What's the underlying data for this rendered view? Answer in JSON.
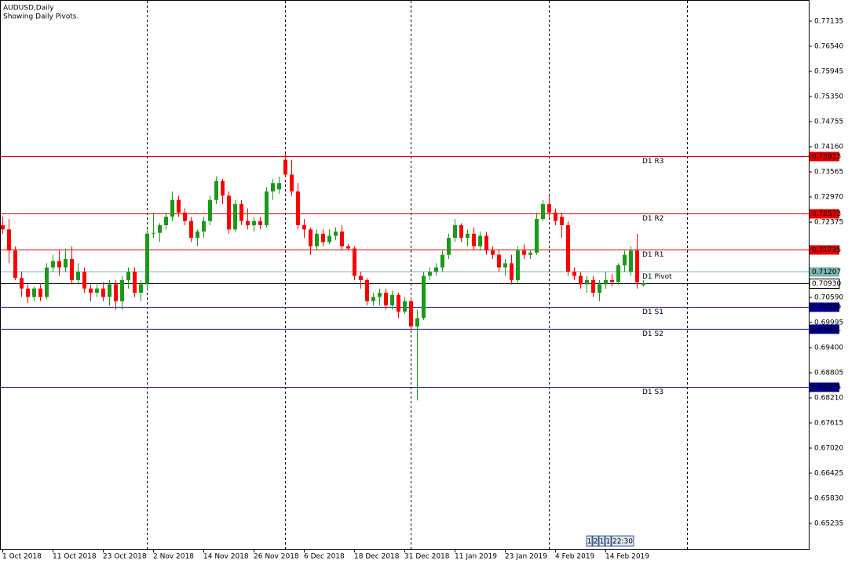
{
  "chart_data": {
    "type": "candlestick",
    "title": "AUDUSD,Daily",
    "subtitle": "Showing Daily Pivots.",
    "categories": [
      "1 Oct 2018",
      null,
      null,
      null,
      null,
      null,
      null,
      null,
      "11 Oct 2018",
      null,
      null,
      null,
      null,
      null,
      null,
      null,
      "23 Oct 2018",
      null,
      null,
      null,
      null,
      null,
      null,
      null,
      "2 Nov 2018",
      null,
      null,
      null,
      null,
      null,
      null,
      null,
      "14 Nov 2018",
      null,
      null,
      null,
      null,
      null,
      null,
      null,
      "26 Nov 2018",
      null,
      null,
      null,
      null,
      null,
      null,
      null,
      "6 Dec 2018",
      null,
      null,
      null,
      null,
      null,
      null,
      null,
      "18 Dec 2018",
      null,
      null,
      null,
      null,
      null,
      null,
      null,
      "31 Dec 2018",
      null,
      null,
      null,
      null,
      null,
      null,
      null,
      "11 Jan 2019",
      null,
      null,
      null,
      null,
      null,
      null,
      null,
      "23 Jan 2019",
      null,
      null,
      null,
      null,
      null,
      null,
      null,
      "4 Feb 2019",
      null,
      null,
      null,
      null,
      null,
      null,
      null,
      "14 Feb 2019",
      null,
      null,
      null,
      null,
      null,
      null
    ],
    "open": [
      0.723,
      0.722,
      0.717,
      0.7105,
      0.708,
      0.706,
      0.708,
      0.706,
      0.713,
      0.7145,
      0.713,
      0.715,
      0.71,
      0.712,
      0.708,
      0.707,
      0.708,
      0.706,
      0.709,
      0.705,
      0.71,
      0.712,
      0.707,
      0.709,
      0.721,
      0.7212,
      0.723,
      0.725,
      0.729,
      0.726,
      0.724,
      0.72,
      0.7215,
      0.724,
      0.729,
      0.7335,
      0.73,
      0.722,
      0.728,
      0.724,
      0.723,
      0.724,
      0.723,
      0.731,
      0.7315,
      0.7385,
      0.735,
      0.731,
      0.723,
      0.722,
      0.718,
      0.721,
      0.719,
      0.7205,
      0.7215,
      0.718,
      0.7175,
      0.711,
      0.71,
      0.705,
      0.706,
      0.707,
      0.704,
      0.7065,
      0.7025,
      0.705,
      0.699,
      0.701,
      0.711,
      0.712,
      0.713,
      0.716,
      0.72,
      0.723,
      0.72,
      0.721,
      0.718,
      0.7205,
      0.717,
      0.716,
      0.713,
      0.714,
      0.71,
      0.717,
      0.716,
      0.7165,
      0.7245,
      0.728,
      0.726,
      0.725,
      0.723,
      0.712,
      0.711,
      0.709,
      0.71,
      0.707,
      0.709,
      0.71,
      0.7095,
      0.7135,
      0.712,
      0.717,
      0.7088
    ],
    "high": [
      0.725,
      0.7245,
      0.718,
      0.712,
      0.709,
      0.7085,
      0.709,
      0.714,
      0.716,
      0.717,
      0.7175,
      0.718,
      0.714,
      0.713,
      0.709,
      0.709,
      0.7095,
      0.71,
      0.71,
      0.711,
      0.713,
      0.713,
      0.71,
      0.722,
      0.726,
      0.7235,
      0.726,
      0.731,
      0.73,
      0.727,
      0.725,
      0.722,
      0.725,
      0.73,
      0.7345,
      0.734,
      0.731,
      0.729,
      0.729,
      0.727,
      0.725,
      0.725,
      0.732,
      0.734,
      0.7345,
      0.74,
      0.7385,
      0.733,
      0.7245,
      0.7225,
      0.722,
      0.722,
      0.722,
      0.7225,
      0.723,
      0.7185,
      0.718,
      0.712,
      0.7105,
      0.707,
      0.708,
      0.708,
      0.7075,
      0.707,
      0.706,
      0.706,
      0.703,
      0.712,
      0.713,
      0.714,
      0.717,
      0.721,
      0.7245,
      0.7235,
      0.722,
      0.7225,
      0.7215,
      0.7215,
      0.718,
      0.717,
      0.715,
      0.716,
      0.718,
      0.7185,
      0.717,
      0.726,
      0.729,
      0.73,
      0.727,
      0.726,
      0.724,
      0.713,
      0.712,
      0.711,
      0.711,
      0.71,
      0.712,
      0.7115,
      0.714,
      0.717,
      0.718,
      0.721,
      0.71
    ],
    "low": [
      0.721,
      0.714,
      0.71,
      0.706,
      0.7045,
      0.705,
      0.705,
      0.7055,
      0.712,
      0.711,
      0.712,
      0.709,
      0.709,
      0.707,
      0.705,
      0.706,
      0.705,
      0.704,
      0.703,
      0.703,
      0.708,
      0.706,
      0.705,
      0.708,
      0.72,
      0.719,
      0.722,
      0.724,
      0.725,
      0.723,
      0.719,
      0.718,
      0.72,
      0.723,
      0.728,
      0.728,
      0.721,
      0.7215,
      0.723,
      0.722,
      0.7215,
      0.722,
      0.7225,
      0.729,
      0.7305,
      0.7345,
      0.73,
      0.722,
      0.72,
      0.716,
      0.717,
      0.718,
      0.7185,
      0.7195,
      0.717,
      0.717,
      0.71,
      0.708,
      0.704,
      0.704,
      0.704,
      0.703,
      0.703,
      0.701,
      0.702,
      0.698,
      0.6815,
      0.7005,
      0.71,
      0.711,
      0.712,
      0.715,
      0.719,
      0.719,
      0.718,
      0.717,
      0.717,
      0.716,
      0.715,
      0.712,
      0.711,
      0.709,
      0.7095,
      0.715,
      0.715,
      0.716,
      0.724,
      0.725,
      0.723,
      0.72,
      0.711,
      0.71,
      0.708,
      0.707,
      0.706,
      0.705,
      0.708,
      0.7085,
      0.709,
      0.712,
      0.711,
      0.708,
      0.7085
    ],
    "close": [
      0.722,
      0.717,
      0.7105,
      0.708,
      0.706,
      0.708,
      0.706,
      0.713,
      0.7145,
      0.713,
      0.715,
      0.71,
      0.712,
      0.708,
      0.707,
      0.708,
      0.706,
      0.709,
      0.705,
      0.71,
      0.712,
      0.707,
      0.709,
      0.721,
      0.7212,
      0.723,
      0.725,
      0.729,
      0.726,
      0.724,
      0.72,
      0.7215,
      0.724,
      0.729,
      0.7335,
      0.73,
      0.722,
      0.728,
      0.724,
      0.723,
      0.724,
      0.723,
      0.731,
      0.733,
      0.733,
      0.735,
      0.731,
      0.723,
      0.722,
      0.718,
      0.721,
      0.719,
      0.7205,
      0.7215,
      0.718,
      0.7175,
      0.711,
      0.71,
      0.705,
      0.706,
      0.707,
      0.704,
      0.7065,
      0.7025,
      0.705,
      0.699,
      0.701,
      0.711,
      0.712,
      0.713,
      0.716,
      0.72,
      0.723,
      0.72,
      0.721,
      0.718,
      0.7205,
      0.717,
      0.716,
      0.713,
      0.714,
      0.71,
      0.717,
      0.716,
      0.7165,
      0.7245,
      0.728,
      0.726,
      0.724,
      0.723,
      0.712,
      0.711,
      0.709,
      0.71,
      0.707,
      0.709,
      0.71,
      0.7095,
      0.7135,
      0.716,
      0.717,
      0.7095,
      0.7093
    ],
    "up_color": "#1a9a1a",
    "down_color": "#ff0000",
    "ylim": [
      0.64621,
      0.77637
    ],
    "yticks": [
      0.77135,
      {
        "value": 0.7654,
        "label": "0.76540"
      },
      0.75945,
      {
        "value": 0.7535,
        "label": "0.75350"
      },
      0.74755,
      {
        "value": 0.7416,
        "label": "0.74160"
      },
      0.73565,
      {
        "value": 0.7297,
        "label": "0.72970"
      },
      0.72375,
      {
        "value": 0.7059,
        "label": "0.70590"
      },
      0.69995,
      {
        "value": 0.694,
        "label": "0.69400"
      },
      0.68805,
      {
        "value": 0.6821,
        "label": "0.68210"
      },
      0.67615,
      {
        "value": 0.6702,
        "label": "0.67020"
      },
      0.66425,
      {
        "value": 0.6583,
        "label": "0.65830"
      },
      0.65235
    ],
    "levels": [
      {
        "name": "D1 R3",
        "value": 0.73933,
        "color": "#e00000"
      },
      {
        "name": "D1 R2",
        "value": 0.72573,
        "color": "#e00000"
      },
      {
        "name": "D1 R1",
        "value": 0.71725,
        "color": "#e00000"
      },
      {
        "name": "D1 Pivot",
        "value": 0.71207,
        "color": "#7fb5b5"
      },
      {
        "name": "D1 S1",
        "value": 0.70359,
        "color": "#00008b"
      },
      {
        "name": "D1 S2",
        "value": 0.69841,
        "color": "#00008b"
      },
      {
        "name": "D1 S3",
        "value": 0.68475,
        "color": "#00008b"
      }
    ],
    "current_price": {
      "value": 0.7093,
      "label": "0.70930"
    },
    "status_boxes": [
      "1",
      "2",
      "1",
      "1",
      "22:30"
    ]
  }
}
